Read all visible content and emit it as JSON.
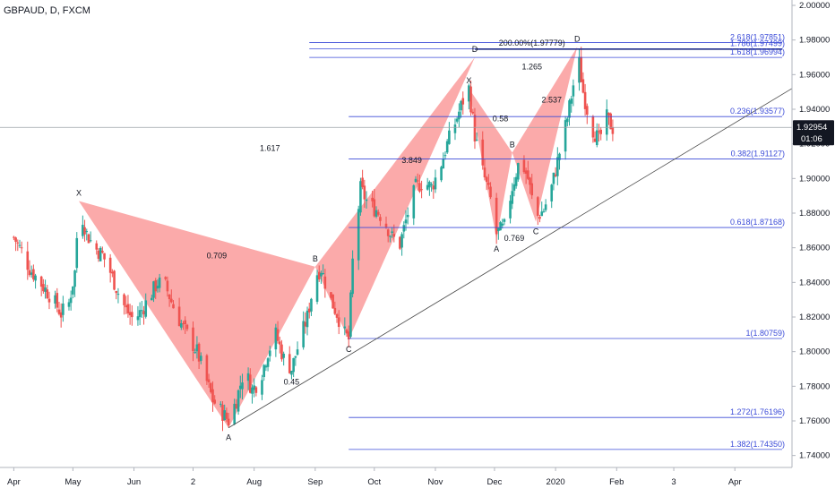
{
  "symbol_title": "GBPAUD, D, FXCM",
  "colors": {
    "bull": "#26a69a",
    "bear": "#ef5350",
    "pattern_fill": "#f87171",
    "fib_line": "#3b4bd8",
    "trend_line": "#4a4a4a",
    "axis_text": "#131722",
    "price_tag_bg": "#131722",
    "price_tag_text": "#ffffff"
  },
  "price_tag": {
    "price": "1.92954",
    "countdown": "01:06",
    "value": 1.92954
  },
  "chart_data": {
    "type": "candlestick",
    "ylim": [
      1.73,
      2.0
    ],
    "y_ticks": [
      2.0,
      1.98,
      1.96,
      1.94,
      1.92,
      1.9,
      1.88,
      1.86,
      1.84,
      1.82,
      1.8,
      1.78,
      1.76,
      1.74
    ],
    "y_tick_labels": [
      "2.00000",
      "1.98000",
      "1.96000",
      "1.94000",
      "1.92000",
      "1.90000",
      "1.88000",
      "1.86000",
      "1.84000",
      "1.82000",
      "1.80000",
      "1.78000",
      "1.76000",
      "1.74000"
    ],
    "x_tick_labels": [
      "Apr",
      "May",
      "Jun",
      "2",
      "Aug",
      "Sep",
      "Oct",
      "Nov",
      "Dec",
      "2020",
      "Feb",
      "3",
      "Apr"
    ],
    "x_ticks_day": [
      0,
      30,
      61,
      91,
      122,
      153,
      183,
      214,
      244,
      275,
      306,
      335,
      366
    ],
    "xlim_day": [
      -7,
      395
    ],
    "closes": [
      [
        0,
        1.866
      ],
      [
        4,
        1.858
      ],
      [
        8,
        1.848
      ],
      [
        12,
        1.842
      ],
      [
        16,
        1.836
      ],
      [
        20,
        1.83
      ],
      [
        24,
        1.822
      ],
      [
        28,
        1.828
      ],
      [
        31,
        1.846
      ],
      [
        33,
        1.886
      ],
      [
        37,
        1.868
      ],
      [
        41,
        1.86
      ],
      [
        45,
        1.856
      ],
      [
        49,
        1.846
      ],
      [
        53,
        1.834
      ],
      [
        57,
        1.824
      ],
      [
        61,
        1.818
      ],
      [
        65,
        1.824
      ],
      [
        69,
        1.832
      ],
      [
        73,
        1.84
      ],
      [
        77,
        1.838
      ],
      [
        81,
        1.826
      ],
      [
        85,
        1.816
      ],
      [
        89,
        1.808
      ],
      [
        93,
        1.8
      ],
      [
        97,
        1.786
      ],
      [
        101,
        1.772
      ],
      [
        105,
        1.766
      ],
      [
        109,
        1.76
      ],
      [
        113,
        1.772
      ],
      [
        117,
        1.79
      ],
      [
        121,
        1.778
      ],
      [
        125,
        1.784
      ],
      [
        129,
        1.8
      ],
      [
        133,
        1.81
      ],
      [
        137,
        1.796
      ],
      [
        141,
        1.79
      ],
      [
        145,
        1.806
      ],
      [
        149,
        1.82
      ],
      [
        153,
        1.844
      ],
      [
        156,
        1.848
      ],
      [
        160,
        1.832
      ],
      [
        164,
        1.822
      ],
      [
        168,
        1.81
      ],
      [
        170,
        1.807
      ],
      [
        172,
        1.852
      ],
      [
        176,
        1.894
      ],
      [
        180,
        1.885
      ],
      [
        184,
        1.882
      ],
      [
        188,
        1.876
      ],
      [
        192,
        1.866
      ],
      [
        196,
        1.862
      ],
      [
        200,
        1.88
      ],
      [
        204,
        1.895
      ],
      [
        208,
        1.898
      ],
      [
        212,
        1.895
      ],
      [
        216,
        1.905
      ],
      [
        220,
        1.92
      ],
      [
        224,
        1.932
      ],
      [
        228,
        1.945
      ],
      [
        231,
        1.952
      ],
      [
        234,
        1.925
      ],
      [
        238,
        1.904
      ],
      [
        242,
        1.888
      ],
      [
        245,
        1.868
      ],
      [
        249,
        1.872
      ],
      [
        253,
        1.895
      ],
      [
        257,
        1.912
      ],
      [
        261,
        1.9
      ],
      [
        265,
        1.877
      ],
      [
        269,
        1.882
      ],
      [
        273,
        1.895
      ],
      [
        277,
        1.915
      ],
      [
        281,
        1.935
      ],
      [
        284,
        1.954
      ],
      [
        286,
        1.975
      ],
      [
        289,
        1.95
      ],
      [
        293,
        1.93
      ],
      [
        297,
        1.922
      ],
      [
        301,
        1.935
      ],
      [
        304,
        1.929
      ]
    ],
    "harmonic_patterns": [
      {
        "points": {
          "X": [
            33,
            1.887
          ],
          "A": [
            109,
            1.756
          ],
          "B": [
            153,
            1.849
          ],
          "C": [
            170,
            1.807
          ],
          "D": [
            234,
            1.97
          ]
        },
        "ratios": [
          {
            "text": "0.709",
            "at": [
              103,
              1.854
            ]
          },
          {
            "text": "0.45",
            "at": [
              141,
              1.781
            ]
          },
          {
            "text": "1.617",
            "at": [
              130,
              1.916
            ]
          },
          {
            "text": "3.849",
            "at": [
              202,
              1.909
            ]
          }
        ]
      },
      {
        "points": {
          "X": [
            231,
            1.952
          ],
          "A": [
            245,
            1.865
          ],
          "B": [
            253,
            1.915
          ],
          "C": [
            265,
            1.875
          ],
          "D": [
            286,
            1.976
          ]
        },
        "ratios": [
          {
            "text": "0.58",
            "at": [
              247,
              1.933
            ]
          },
          {
            "text": "0.769",
            "at": [
              254,
              1.864
            ]
          },
          {
            "text": "2.537",
            "at": [
              273,
              1.944
            ]
          },
          {
            "text": "1.265",
            "at": [
              263,
              1.963
            ]
          }
        ]
      }
    ],
    "fib_levels": [
      {
        "label": "2.618(1.97851)",
        "value": 1.97851
      },
      {
        "label": "1.786(1.97499)",
        "value": 1.97499
      },
      {
        "label": "1.618(1.96994)",
        "value": 1.96994
      },
      {
        "label": "0.236(1.93577)",
        "value": 1.93577
      },
      {
        "label": "0.382(1.91127)",
        "value": 1.91127
      },
      {
        "label": "0.618(1.87168)",
        "value": 1.87168
      },
      {
        "label": "1(1.80759)",
        "value": 1.80759
      },
      {
        "label": "1.272(1.76196)",
        "value": 1.76196
      },
      {
        "label": "1.382(1.74350)",
        "value": 1.7435
      }
    ],
    "top_label": {
      "text": "200.00%(1.97779)",
      "value": 1.97779
    },
    "trend_line": {
      "from": [
        109,
        1.756
      ],
      "to": [
        395,
        1.952
      ]
    }
  }
}
